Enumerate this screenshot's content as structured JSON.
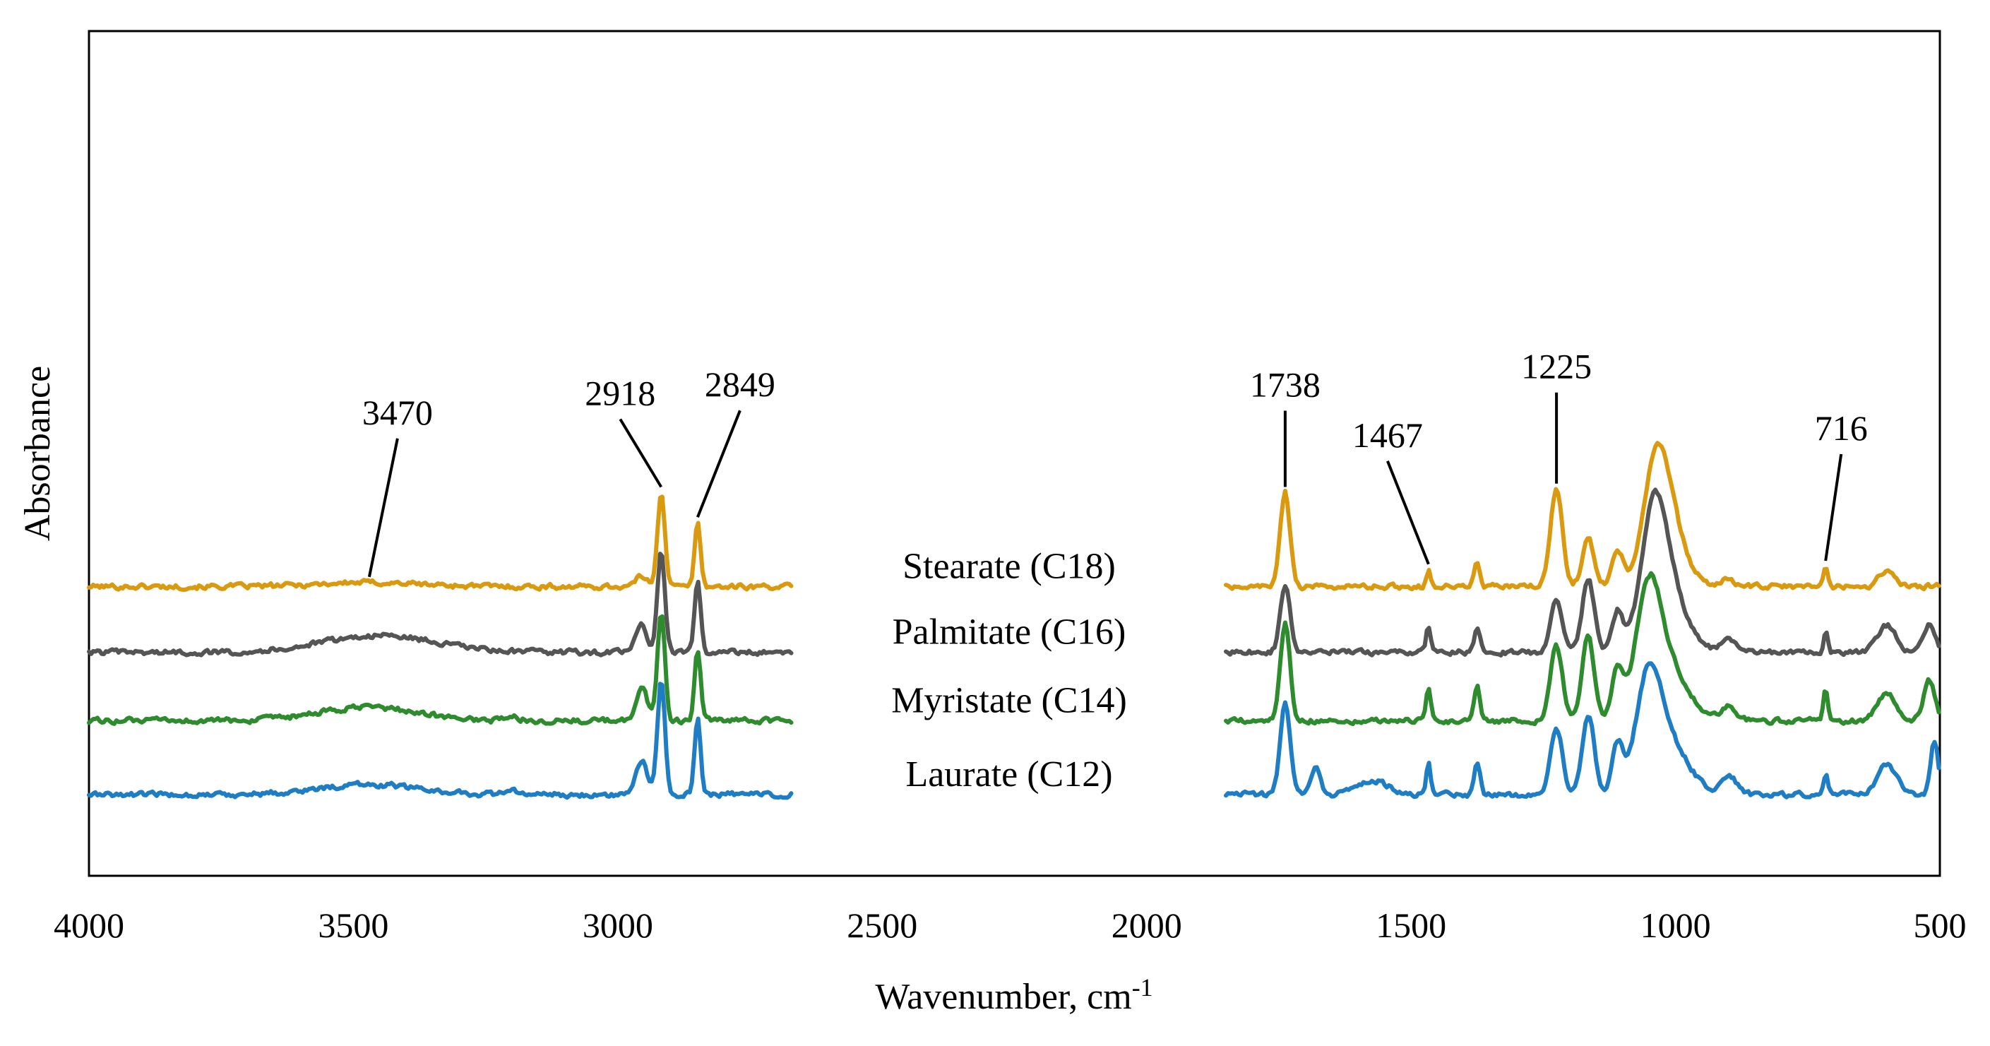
{
  "chart_data": {
    "type": "line",
    "title": "",
    "xlabel": "Wavenumber, cm",
    "xlabel_superscript": "-1",
    "ylabel": "Absorbance",
    "xlim": [
      4000,
      500
    ],
    "x_reversed": true,
    "xticks": [
      4000,
      3500,
      3000,
      2500,
      2000,
      1500,
      1000,
      500
    ],
    "y_axis_ticks_shown": false,
    "grid": false,
    "gap_between_regions": [
      2670,
      1850
    ],
    "series": [
      {
        "name": "Stearate (C18)",
        "color": "#D99A10",
        "offset": 3.1,
        "peaks": [
          {
            "x": 3470,
            "h": 0.06,
            "w": 140
          },
          {
            "x": 2955,
            "h": 0.15,
            "w": 15
          },
          {
            "x": 2918,
            "h": 1.4,
            "w": 10
          },
          {
            "x": 2849,
            "h": 0.95,
            "w": 8
          },
          {
            "x": 1738,
            "h": 1.4,
            "w": 13
          },
          {
            "x": 1467,
            "h": 0.25,
            "w": 6
          },
          {
            "x": 1375,
            "h": 0.35,
            "w": 8
          },
          {
            "x": 1225,
            "h": 1.45,
            "w": 16
          },
          {
            "x": 1165,
            "h": 0.7,
            "w": 16
          },
          {
            "x": 1110,
            "h": 0.55,
            "w": 15
          },
          {
            "x": 1035,
            "h": 1.9,
            "w": 35
          },
          {
            "x": 1000,
            "h": 0.5,
            "w": 40
          },
          {
            "x": 900,
            "h": 0.1,
            "w": 20
          },
          {
            "x": 716,
            "h": 0.3,
            "w": 6
          },
          {
            "x": 600,
            "h": 0.25,
            "w": 20
          }
        ]
      },
      {
        "name": "Palmitate (C16)",
        "color": "#555555",
        "offset": 2.12,
        "peaks": [
          {
            "x": 3450,
            "h": 0.25,
            "w": 150
          },
          {
            "x": 2955,
            "h": 0.4,
            "w": 15
          },
          {
            "x": 2918,
            "h": 1.5,
            "w": 10
          },
          {
            "x": 2849,
            "h": 1.08,
            "w": 8
          },
          {
            "x": 1738,
            "h": 1.0,
            "w": 13
          },
          {
            "x": 1467,
            "h": 0.4,
            "w": 6
          },
          {
            "x": 1375,
            "h": 0.35,
            "w": 8
          },
          {
            "x": 1225,
            "h": 0.8,
            "w": 16
          },
          {
            "x": 1165,
            "h": 1.1,
            "w": 16
          },
          {
            "x": 1110,
            "h": 0.6,
            "w": 15
          },
          {
            "x": 1040,
            "h": 2.1,
            "w": 35
          },
          {
            "x": 1000,
            "h": 0.6,
            "w": 45
          },
          {
            "x": 900,
            "h": 0.2,
            "w": 20
          },
          {
            "x": 716,
            "h": 0.3,
            "w": 6
          },
          {
            "x": 600,
            "h": 0.4,
            "w": 25
          },
          {
            "x": 520,
            "h": 0.4,
            "w": 15
          }
        ]
      },
      {
        "name": "Myristate (C14)",
        "color": "#2E8B2E",
        "offset": 1.1,
        "peaks": [
          {
            "x": 3470,
            "h": 0.2,
            "w": 130
          },
          {
            "x": 3200,
            "h": 0.05,
            "w": 20
          },
          {
            "x": 2955,
            "h": 0.5,
            "w": 15
          },
          {
            "x": 2918,
            "h": 1.6,
            "w": 10
          },
          {
            "x": 2849,
            "h": 1.05,
            "w": 8
          },
          {
            "x": 1738,
            "h": 1.45,
            "w": 13
          },
          {
            "x": 1467,
            "h": 0.5,
            "w": 6
          },
          {
            "x": 1375,
            "h": 0.5,
            "w": 8
          },
          {
            "x": 1225,
            "h": 1.1,
            "w": 16
          },
          {
            "x": 1165,
            "h": 1.25,
            "w": 16
          },
          {
            "x": 1110,
            "h": 0.7,
            "w": 15
          },
          {
            "x": 1050,
            "h": 2.0,
            "w": 35
          },
          {
            "x": 1000,
            "h": 0.6,
            "w": 45
          },
          {
            "x": 900,
            "h": 0.2,
            "w": 20
          },
          {
            "x": 716,
            "h": 0.45,
            "w": 6
          },
          {
            "x": 600,
            "h": 0.4,
            "w": 25
          },
          {
            "x": 520,
            "h": 0.6,
            "w": 15
          }
        ]
      },
      {
        "name": "Laurate (C12)",
        "color": "#1F7DC4",
        "offset": 0.0,
        "peaks": [
          {
            "x": 3470,
            "h": 0.15,
            "w": 130
          },
          {
            "x": 3200,
            "h": 0.05,
            "w": 20
          },
          {
            "x": 2955,
            "h": 0.5,
            "w": 15
          },
          {
            "x": 2918,
            "h": 1.7,
            "w": 10
          },
          {
            "x": 2849,
            "h": 1.12,
            "w": 8
          },
          {
            "x": 1738,
            "h": 1.4,
            "w": 13
          },
          {
            "x": 1680,
            "h": 0.4,
            "w": 12
          },
          {
            "x": 1570,
            "h": 0.2,
            "w": 40
          },
          {
            "x": 1467,
            "h": 0.5,
            "w": 6
          },
          {
            "x": 1375,
            "h": 0.5,
            "w": 8
          },
          {
            "x": 1225,
            "h": 1.0,
            "w": 16
          },
          {
            "x": 1165,
            "h": 1.2,
            "w": 16
          },
          {
            "x": 1110,
            "h": 0.7,
            "w": 15
          },
          {
            "x": 1050,
            "h": 1.8,
            "w": 35
          },
          {
            "x": 1000,
            "h": 0.6,
            "w": 45
          },
          {
            "x": 900,
            "h": 0.3,
            "w": 20
          },
          {
            "x": 716,
            "h": 0.3,
            "w": 6
          },
          {
            "x": 600,
            "h": 0.45,
            "w": 25
          },
          {
            "x": 510,
            "h": 0.8,
            "w": 10
          }
        ]
      }
    ],
    "annotations": [
      {
        "label": "3470",
        "x": 3470,
        "series": "Stearate (C18)"
      },
      {
        "label": "2918",
        "x": 2918,
        "series": "Stearate (C18)"
      },
      {
        "label": "2849",
        "x": 2849,
        "series": "Stearate (C18)"
      },
      {
        "label": "1738",
        "x": 1738,
        "series": "Stearate (C18)"
      },
      {
        "label": "1467",
        "x": 1467,
        "series": "Stearate (C18)"
      },
      {
        "label": "1225",
        "x": 1225,
        "series": "Stearate (C18)"
      },
      {
        "label": "716",
        "x": 716,
        "series": "Stearate (C18)"
      }
    ]
  }
}
